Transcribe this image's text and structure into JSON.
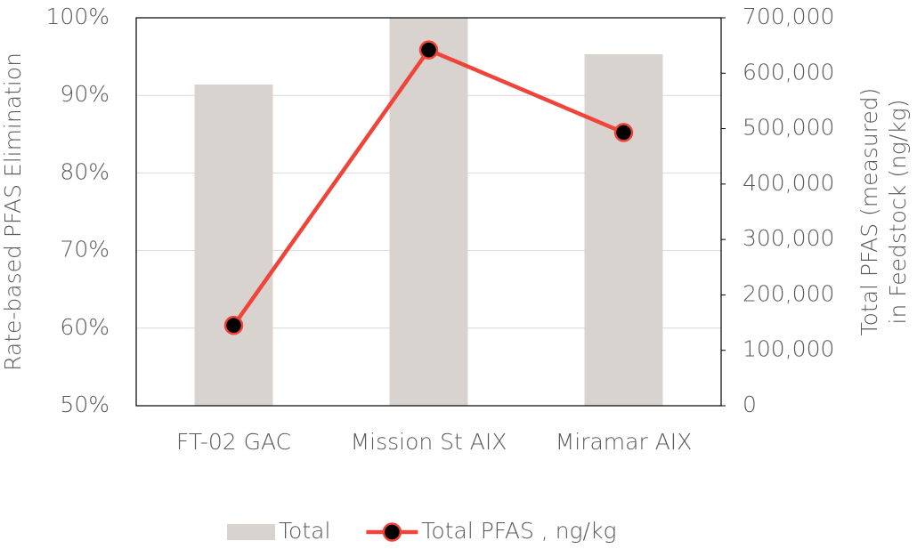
{
  "chart_data": {
    "type": "bar_line",
    "categories": [
      "FT-02 GAC",
      "Mission St AIX",
      "Miramar AIX"
    ],
    "ylabel": "Rate-based PFAS Elimination",
    "y2label": [
      "Total PFAS (measured)",
      "in Feedstock (ng/kg)"
    ],
    "ylim": [
      50,
      100
    ],
    "yticks": [
      {
        "value": 50,
        "label": "50%"
      },
      {
        "value": 60,
        "label": "60%"
      },
      {
        "value": 70,
        "label": "70%"
      },
      {
        "value": 80,
        "label": "80%"
      },
      {
        "value": 90,
        "label": "90%"
      },
      {
        "value": 100,
        "label": "100%"
      }
    ],
    "y2lim": [
      0,
      700000
    ],
    "y2ticks": [
      0,
      {
        "value": 100000,
        "label": "100,000"
      },
      {
        "value": 200000,
        "label": "200,000"
      },
      {
        "value": 300000,
        "label": "300,000"
      },
      {
        "value": 400000,
        "label": "400,000"
      },
      {
        "value": 500000,
        "label": "500,000"
      },
      {
        "value": 600000,
        "label": "600,000"
      },
      {
        "value": 700000,
        "label": "700,000"
      }
    ],
    "grid": true,
    "series": [
      {
        "name": "Total",
        "type": "bar",
        "color": "#d9d3cf",
        "values": [
          91.4,
          100,
          95.3
        ]
      },
      {
        "name": "Total PFAS , ng/kg",
        "type": "line",
        "axis": "y2",
        "color": "#f0443a",
        "values": [
          145000,
          642000,
          493000
        ]
      }
    ]
  }
}
